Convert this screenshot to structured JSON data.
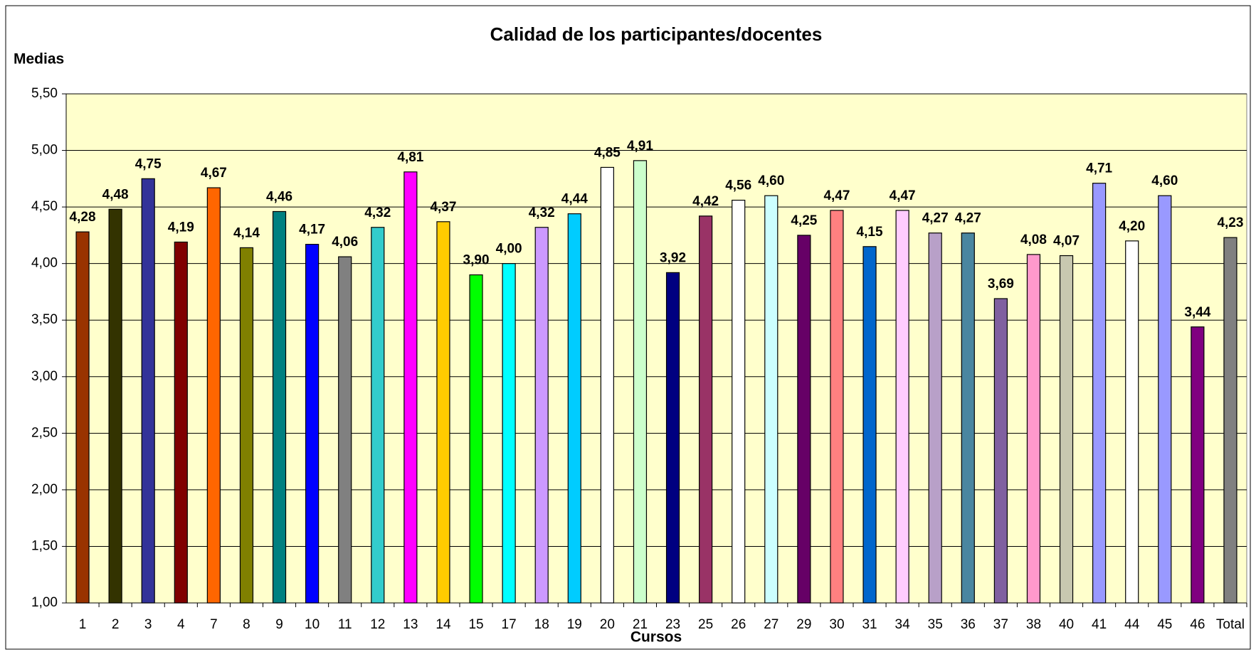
{
  "chart_data": {
    "type": "bar",
    "title": "Calidad de los participantes/docentes",
    "y_label": "Medias",
    "x_label": "Cursos",
    "categories": [
      "1",
      "2",
      "3",
      "4",
      "7",
      "8",
      "9",
      "10",
      "11",
      "12",
      "13",
      "14",
      "15",
      "17",
      "18",
      "19",
      "20",
      "21",
      "23",
      "25",
      "26",
      "27",
      "29",
      "30",
      "31",
      "34",
      "35",
      "36",
      "37",
      "38",
      "40",
      "41",
      "44",
      "45",
      "46",
      "Total"
    ],
    "values": [
      4.28,
      4.48,
      4.75,
      4.19,
      4.67,
      4.14,
      4.46,
      4.17,
      4.06,
      4.32,
      4.81,
      4.37,
      3.9,
      4.0,
      4.32,
      4.44,
      4.85,
      4.91,
      3.92,
      4.42,
      4.56,
      4.6,
      4.25,
      4.47,
      4.15,
      4.47,
      4.27,
      4.27,
      3.69,
      4.08,
      4.07,
      4.71,
      4.2,
      4.6,
      3.44,
      4.23
    ],
    "value_labels": [
      "4,28",
      "4,48",
      "4,75",
      "4,19",
      "4,67",
      "4,14",
      "4,46",
      "4,17",
      "4,06",
      "4,32",
      "4,81",
      "4,37",
      "3,90",
      "4,00",
      "4,32",
      "4,44",
      "4,85",
      "4,91",
      "3,92",
      "4,42",
      "4,56",
      "4,60",
      "4,25",
      "4,47",
      "4,15",
      "4,47",
      "4,27",
      "4,27",
      "3,69",
      "4,08",
      "4,07",
      "4,71",
      "4,20",
      "4,60",
      "3,44",
      "4,23"
    ],
    "colors": [
      "#993300",
      "#333300",
      "#333399",
      "#800000",
      "#ff6600",
      "#808000",
      "#008080",
      "#0000ff",
      "#808080",
      "#33cccc",
      "#ff00ff",
      "#ffcc00",
      "#00ff00",
      "#00ffff",
      "#cc99ff",
      "#00ccff",
      "#ffffff",
      "#ccffcc",
      "#000080",
      "#993366",
      "#ffffff",
      "#ccffff",
      "#660066",
      "#ff8080",
      "#0066cc",
      "#ffccff",
      "#b8a0c8",
      "#4a86a0",
      "#8060a0",
      "#ff99cc",
      "#c8c8b0",
      "#9999ff",
      "#ffffff",
      "#9999ff",
      "#800080",
      "#808080"
    ],
    "ylim": [
      1.0,
      5.5
    ],
    "yticks": [
      {
        "value": 1.0,
        "label": "1,00"
      },
      {
        "value": 1.5,
        "label": "1,50"
      },
      {
        "value": 2.0,
        "label": "2,00"
      },
      {
        "value": 2.5,
        "label": "2,50"
      },
      {
        "value": 3.0,
        "label": "3,00"
      },
      {
        "value": 3.5,
        "label": "3,50"
      },
      {
        "value": 4.0,
        "label": "4,00"
      },
      {
        "value": 4.5,
        "label": "4,50"
      },
      {
        "value": 5.0,
        "label": "5,00"
      },
      {
        "value": 5.5,
        "label": "5,50"
      }
    ],
    "grid": true,
    "plot_background": "#ffffcc"
  }
}
